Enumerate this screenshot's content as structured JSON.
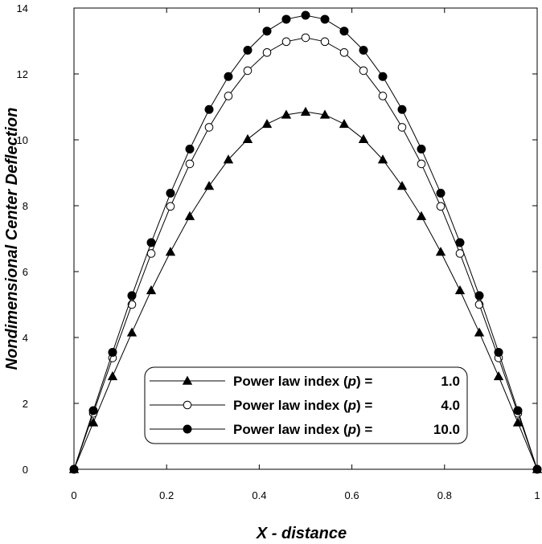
{
  "chart_data": {
    "type": "line",
    "title": "",
    "xlabel": "X - distance",
    "ylabel": "Nondimensional  Center  Deflection",
    "xlim": [
      0,
      1
    ],
    "ylim": [
      0,
      14
    ],
    "x_ticks": [
      "0",
      "0.2",
      "0.4",
      "0.6",
      "0.8",
      "1"
    ],
    "y_ticks": [
      "0",
      "2",
      "4",
      "6",
      "8",
      "10",
      "12",
      "14"
    ],
    "legend_position": "bottom-center",
    "x": [
      0,
      0.0417,
      0.0833,
      0.125,
      0.1667,
      0.2083,
      0.25,
      0.2917,
      0.3333,
      0.375,
      0.4167,
      0.4583,
      0.5,
      0.5417,
      0.5833,
      0.625,
      0.6667,
      0.7083,
      0.75,
      0.7917,
      0.8333,
      0.875,
      0.9167,
      0.9583,
      1
    ],
    "series": [
      {
        "name": "Power law index (p) = 1.0",
        "label_main": "Power  law  index (",
        "label_var": "p",
        "label_close": ") =",
        "label_value": "1.0",
        "marker": "triangle",
        "values": [
          0,
          1.42,
          2.82,
          4.15,
          5.43,
          6.6,
          7.68,
          8.6,
          9.4,
          10.02,
          10.48,
          10.76,
          10.85,
          10.76,
          10.48,
          10.02,
          9.4,
          8.6,
          7.68,
          6.6,
          5.43,
          4.15,
          2.82,
          1.42,
          0
        ]
      },
      {
        "name": "Power law index (p) = 4.0",
        "label_main": "Power  law  index (",
        "label_var": "p",
        "label_close": ") =",
        "label_value": "4.0",
        "marker": "open-circle",
        "values": [
          0,
          1.7,
          3.38,
          5.0,
          6.55,
          7.98,
          9.27,
          10.38,
          11.33,
          12.1,
          12.65,
          12.98,
          13.1,
          12.98,
          12.65,
          12.1,
          11.33,
          10.38,
          9.27,
          7.98,
          6.55,
          5.0,
          3.38,
          1.7,
          0
        ]
      },
      {
        "name": "Power law index (p) = 10.0",
        "label_main": "Power  law  index (",
        "label_var": "p",
        "label_close": ") =",
        "label_value": "10.0",
        "marker": "filled-circle",
        "values": [
          0,
          1.78,
          3.55,
          5.27,
          6.88,
          8.38,
          9.72,
          10.92,
          11.92,
          12.72,
          13.3,
          13.66,
          13.78,
          13.66,
          13.3,
          12.72,
          11.92,
          10.92,
          9.72,
          8.38,
          6.88,
          5.27,
          3.55,
          1.78,
          0
        ]
      }
    ]
  }
}
